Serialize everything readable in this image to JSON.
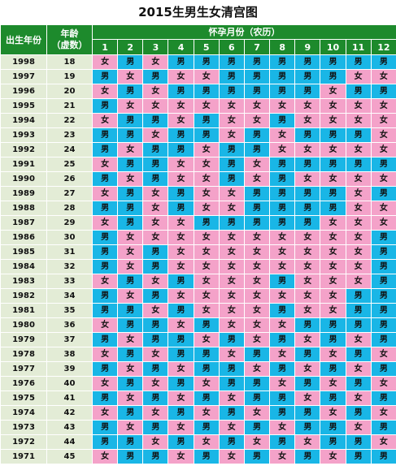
{
  "title": "2015生男生女清宫图",
  "headers": {
    "year": "出生年份",
    "age_line1": "年龄",
    "age_line2": "（虚数）",
    "month_group": "怀孕月份（农历）"
  },
  "months": [
    "1",
    "2",
    "3",
    "4",
    "5",
    "6",
    "7",
    "8",
    "9",
    "10",
    "11",
    "12"
  ],
  "labels": {
    "boy": "男",
    "girl": "女"
  },
  "colors": {
    "boy": "#19b6e6",
    "girl": "#f4a2c9",
    "header": "#1d8a2c",
    "label_bg": "#e3ecd6"
  },
  "rows": [
    {
      "year": "1998",
      "age": "18",
      "cells": [
        "女",
        "男",
        "女",
        "男",
        "男",
        "男",
        "男",
        "男",
        "男",
        "男",
        "男",
        "男"
      ]
    },
    {
      "year": "1997",
      "age": "19",
      "cells": [
        "男",
        "女",
        "男",
        "女",
        "女",
        "男",
        "男",
        "男",
        "男",
        "男",
        "女",
        "女"
      ]
    },
    {
      "year": "1996",
      "age": "20",
      "cells": [
        "女",
        "男",
        "女",
        "男",
        "男",
        "男",
        "男",
        "男",
        "男",
        "女",
        "男",
        "男"
      ]
    },
    {
      "year": "1995",
      "age": "21",
      "cells": [
        "男",
        "女",
        "女",
        "女",
        "女",
        "女",
        "女",
        "女",
        "女",
        "女",
        "女",
        "女"
      ]
    },
    {
      "year": "1994",
      "age": "22",
      "cells": [
        "女",
        "男",
        "男",
        "女",
        "男",
        "女",
        "女",
        "男",
        "女",
        "女",
        "女",
        "女"
      ]
    },
    {
      "year": "1993",
      "age": "23",
      "cells": [
        "男",
        "男",
        "女",
        "男",
        "男",
        "女",
        "男",
        "女",
        "男",
        "男",
        "男",
        "女"
      ]
    },
    {
      "year": "1992",
      "age": "24",
      "cells": [
        "男",
        "女",
        "男",
        "男",
        "女",
        "男",
        "男",
        "女",
        "女",
        "女",
        "女",
        "女"
      ]
    },
    {
      "year": "1991",
      "age": "25",
      "cells": [
        "女",
        "男",
        "男",
        "女",
        "女",
        "男",
        "女",
        "男",
        "男",
        "男",
        "男",
        "男"
      ]
    },
    {
      "year": "1990",
      "age": "26",
      "cells": [
        "男",
        "女",
        "男",
        "女",
        "女",
        "男",
        "女",
        "男",
        "女",
        "女",
        "女",
        "女"
      ]
    },
    {
      "year": "1989",
      "age": "27",
      "cells": [
        "女",
        "男",
        "女",
        "男",
        "女",
        "女",
        "男",
        "男",
        "男",
        "男",
        "女",
        "男"
      ]
    },
    {
      "year": "1988",
      "age": "28",
      "cells": [
        "男",
        "男",
        "女",
        "男",
        "女",
        "女",
        "男",
        "男",
        "男",
        "男",
        "女",
        "女"
      ]
    },
    {
      "year": "1987",
      "age": "29",
      "cells": [
        "女",
        "男",
        "女",
        "女",
        "男",
        "男",
        "男",
        "男",
        "男",
        "女",
        "女",
        "女"
      ]
    },
    {
      "year": "1986",
      "age": "30",
      "cells": [
        "男",
        "女",
        "女",
        "女",
        "女",
        "女",
        "女",
        "女",
        "女",
        "女",
        "女",
        "男"
      ]
    },
    {
      "year": "1985",
      "age": "31",
      "cells": [
        "男",
        "女",
        "男",
        "女",
        "女",
        "女",
        "女",
        "女",
        "女",
        "女",
        "女",
        "男"
      ]
    },
    {
      "year": "1984",
      "age": "32",
      "cells": [
        "男",
        "女",
        "男",
        "女",
        "女",
        "女",
        "女",
        "女",
        "女",
        "女",
        "女",
        "男"
      ]
    },
    {
      "year": "1983",
      "age": "33",
      "cells": [
        "女",
        "男",
        "女",
        "男",
        "女",
        "女",
        "女",
        "男",
        "女",
        "女",
        "女",
        "男"
      ]
    },
    {
      "year": "1982",
      "age": "34",
      "cells": [
        "男",
        "女",
        "男",
        "女",
        "女",
        "女",
        "女",
        "女",
        "女",
        "女",
        "男",
        "男"
      ]
    },
    {
      "year": "1981",
      "age": "35",
      "cells": [
        "男",
        "男",
        "女",
        "男",
        "女",
        "女",
        "女",
        "男",
        "女",
        "女",
        "男",
        "男"
      ]
    },
    {
      "year": "1980",
      "age": "36",
      "cells": [
        "女",
        "男",
        "男",
        "女",
        "男",
        "女",
        "女",
        "女",
        "男",
        "男",
        "男",
        "男"
      ]
    },
    {
      "year": "1979",
      "age": "37",
      "cells": [
        "男",
        "女",
        "男",
        "男",
        "女",
        "男",
        "女",
        "男",
        "女",
        "男",
        "女",
        "男"
      ]
    },
    {
      "year": "1978",
      "age": "38",
      "cells": [
        "女",
        "男",
        "女",
        "男",
        "男",
        "女",
        "男",
        "女",
        "男",
        "女",
        "男",
        "女"
      ]
    },
    {
      "year": "1977",
      "age": "39",
      "cells": [
        "男",
        "女",
        "男",
        "女",
        "男",
        "男",
        "女",
        "男",
        "女",
        "男",
        "女",
        "男"
      ]
    },
    {
      "year": "1976",
      "age": "40",
      "cells": [
        "女",
        "男",
        "女",
        "男",
        "女",
        "男",
        "男",
        "女",
        "男",
        "女",
        "男",
        "女"
      ]
    },
    {
      "year": "1975",
      "age": "41",
      "cells": [
        "男",
        "女",
        "男",
        "女",
        "男",
        "女",
        "男",
        "男",
        "女",
        "男",
        "女",
        "男"
      ]
    },
    {
      "year": "1974",
      "age": "42",
      "cells": [
        "女",
        "男",
        "女",
        "男",
        "女",
        "男",
        "女",
        "男",
        "男",
        "女",
        "男",
        "女"
      ]
    },
    {
      "year": "1973",
      "age": "43",
      "cells": [
        "男",
        "女",
        "男",
        "女",
        "男",
        "女",
        "男",
        "女",
        "男",
        "男",
        "女",
        "男"
      ]
    },
    {
      "year": "1972",
      "age": "44",
      "cells": [
        "男",
        "男",
        "女",
        "男",
        "女",
        "男",
        "女",
        "男",
        "女",
        "男",
        "男",
        "女"
      ]
    },
    {
      "year": "1971",
      "age": "45",
      "cells": [
        "女",
        "男",
        "男",
        "女",
        "男",
        "女",
        "男",
        "女",
        "男",
        "女",
        "男",
        "男"
      ]
    }
  ]
}
